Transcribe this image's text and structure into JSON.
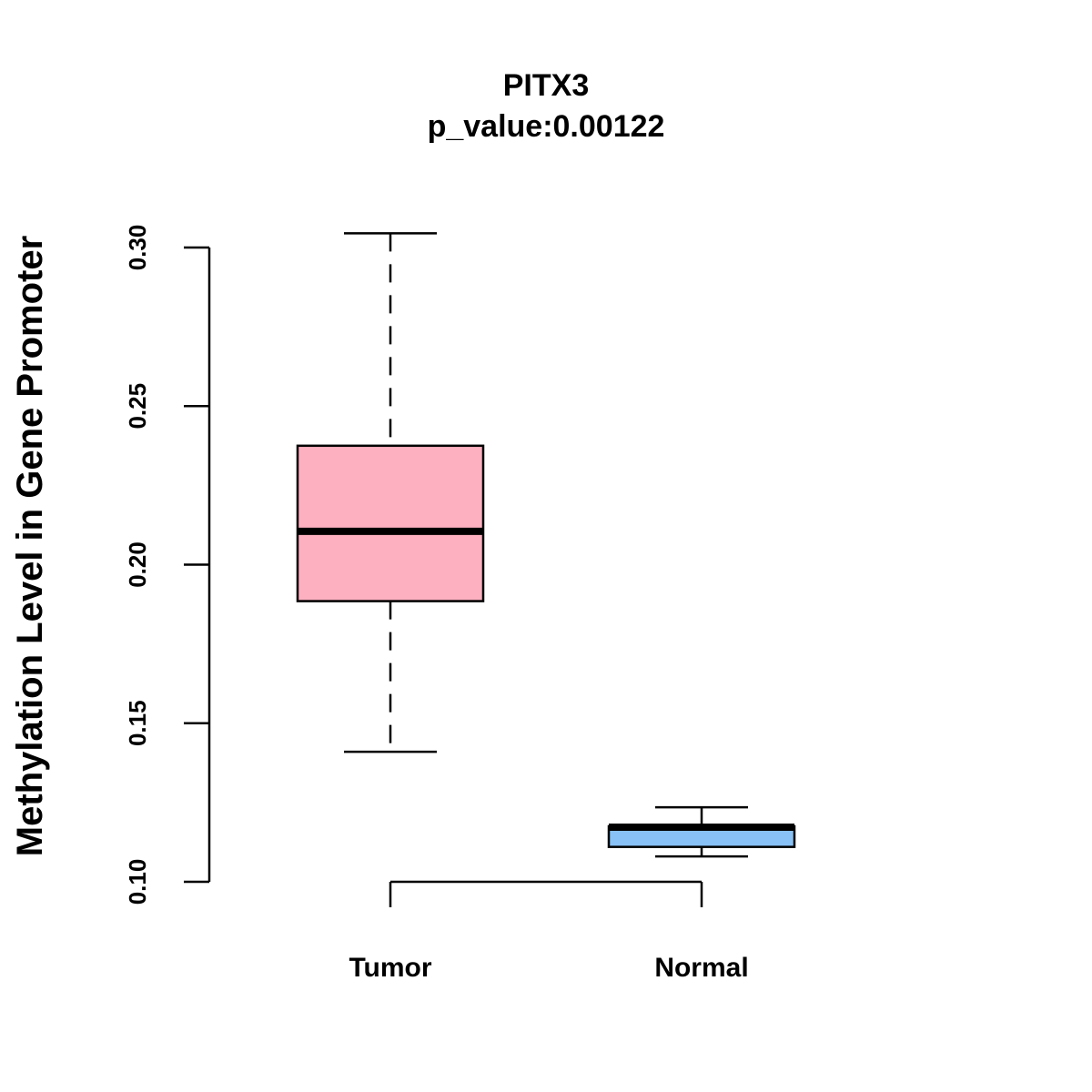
{
  "chart_data": {
    "type": "boxplot",
    "title": "PITX3",
    "subtitle": "p_value:0.00122",
    "xlabel": "",
    "ylabel": "Methylation Level in Gene Promoter",
    "ylim": [
      0.1,
      0.3
    ],
    "yticks": [
      "0.10",
      "0.15",
      "0.20",
      "0.25",
      "0.30"
    ],
    "grid": false,
    "categories": [
      "Tumor",
      "Normal"
    ],
    "boxes": [
      {
        "category": "Tumor",
        "whisker_low": 0.141,
        "q1": 0.1885,
        "median": 0.2105,
        "q3": 0.2375,
        "whisker_high": 0.3045,
        "color": "#FDB0C0"
      },
      {
        "category": "Normal",
        "whisker_low": 0.108,
        "q1": 0.111,
        "median": 0.1172,
        "q3": 0.1175,
        "whisker_high": 0.1235,
        "color": "#87C1F5"
      }
    ]
  }
}
